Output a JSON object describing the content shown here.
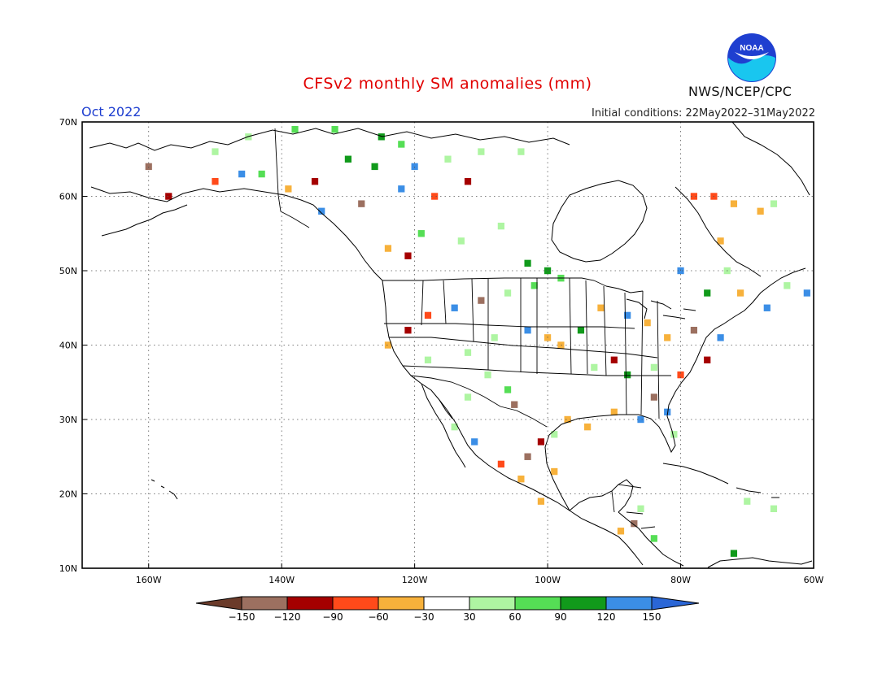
{
  "title": "CFSv2 monthly SM anomalies (mm)",
  "month_label": "Oct 2022",
  "initial_conditions": "Initial conditions: 22May2022–31May2022",
  "agency": "NWS/NCEP/CPC",
  "logo_text": "NOAA",
  "map": {
    "lon_min": -170,
    "lon_max": -60,
    "lat_min": 10,
    "lat_max": 70,
    "lat_ticks": [
      {
        "value": 70,
        "label": "70N"
      },
      {
        "value": 60,
        "label": "60N"
      },
      {
        "value": 50,
        "label": "50N"
      },
      {
        "value": 40,
        "label": "40N"
      },
      {
        "value": 30,
        "label": "30N"
      },
      {
        "value": 20,
        "label": "20N"
      },
      {
        "value": 10,
        "label": "10N"
      }
    ],
    "lon_ticks": [
      {
        "value": -160,
        "label": "160W"
      },
      {
        "value": -140,
        "label": "140W"
      },
      {
        "value": -120,
        "label": "120W"
      },
      {
        "value": -100,
        "label": "100W"
      },
      {
        "value": -80,
        "label": "80W"
      },
      {
        "value": -60,
        "label": "60W"
      }
    ],
    "gridlines": "dotted"
  },
  "colorbar": {
    "colors": [
      "#6b3b2a",
      "#9c7060",
      "#a50000",
      "#ff4a1a",
      "#f7b13b",
      "#ffffff",
      "#aef5a2",
      "#55de55",
      "#119a1b",
      "#3b8ee6",
      "#2a66d6"
    ],
    "labels": [
      "−150",
      "−120",
      "−90",
      "−60",
      "−30",
      "30",
      "60",
      "90",
      "120",
      "150"
    ]
  },
  "chart_data": {
    "type": "heatmap",
    "title": "CFSv2 monthly SM anomalies (mm)",
    "units": "mm",
    "period": "Oct 2022",
    "x_range": [
      -170,
      -60
    ],
    "y_range": [
      10,
      70
    ],
    "bins": [
      -150,
      -120,
      -90,
      -60,
      -30,
      30,
      60,
      90,
      120,
      150
    ],
    "cells": [
      {
        "lon": -150,
        "lat": 66,
        "v": 45
      },
      {
        "lon": -145,
        "lat": 68,
        "v": 45
      },
      {
        "lon": -138,
        "lat": 69,
        "v": 75
      },
      {
        "lon": -132,
        "lat": 69,
        "v": 75
      },
      {
        "lon": -125,
        "lat": 68,
        "v": 100
      },
      {
        "lon": -122,
        "lat": 67,
        "v": 75
      },
      {
        "lon": -130,
        "lat": 65,
        "v": 100
      },
      {
        "lon": -126,
        "lat": 64,
        "v": 100
      },
      {
        "lon": -120,
        "lat": 64,
        "v": 140
      },
      {
        "lon": -122,
        "lat": 61,
        "v": 140
      },
      {
        "lon": -115,
        "lat": 65,
        "v": 45
      },
      {
        "lon": -110,
        "lat": 66,
        "v": 45
      },
      {
        "lon": -104,
        "lat": 66,
        "v": 45
      },
      {
        "lon": -112,
        "lat": 62,
        "v": -110
      },
      {
        "lon": -117,
        "lat": 60,
        "v": -70
      },
      {
        "lon": -160,
        "lat": 64,
        "v": -140
      },
      {
        "lon": -157,
        "lat": 60,
        "v": -110
      },
      {
        "lon": -150,
        "lat": 62,
        "v": -70
      },
      {
        "lon": -146,
        "lat": 63,
        "v": 140
      },
      {
        "lon": -143,
        "lat": 63,
        "v": 75
      },
      {
        "lon": -139,
        "lat": 61,
        "v": -45
      },
      {
        "lon": -135,
        "lat": 62,
        "v": -100
      },
      {
        "lon": -134,
        "lat": 58,
        "v": 140
      },
      {
        "lon": -128,
        "lat": 59,
        "v": -130
      },
      {
        "lon": -124,
        "lat": 53,
        "v": -45
      },
      {
        "lon": -121,
        "lat": 52,
        "v": -110
      },
      {
        "lon": -119,
        "lat": 55,
        "v": 75
      },
      {
        "lon": -113,
        "lat": 54,
        "v": 45
      },
      {
        "lon": -107,
        "lat": 56,
        "v": 45
      },
      {
        "lon": -103,
        "lat": 51,
        "v": 100
      },
      {
        "lon": -100,
        "lat": 50,
        "v": 100
      },
      {
        "lon": -98,
        "lat": 49,
        "v": 75
      },
      {
        "lon": -102,
        "lat": 48,
        "v": 75
      },
      {
        "lon": -106,
        "lat": 47,
        "v": 45
      },
      {
        "lon": -110,
        "lat": 46,
        "v": -130
      },
      {
        "lon": -114,
        "lat": 45,
        "v": 140
      },
      {
        "lon": -118,
        "lat": 44,
        "v": -70
      },
      {
        "lon": -121,
        "lat": 42,
        "v": -110
      },
      {
        "lon": -124,
        "lat": 40,
        "v": -45
      },
      {
        "lon": -118,
        "lat": 38,
        "v": 45
      },
      {
        "lon": -112,
        "lat": 39,
        "v": 45
      },
      {
        "lon": -108,
        "lat": 41,
        "v": 45
      },
      {
        "lon": -103,
        "lat": 42,
        "v": 140
      },
      {
        "lon": -100,
        "lat": 41,
        "v": -45
      },
      {
        "lon": -98,
        "lat": 40,
        "v": -45
      },
      {
        "lon": -95,
        "lat": 42,
        "v": 100
      },
      {
        "lon": -92,
        "lat": 45,
        "v": -45
      },
      {
        "lon": -88,
        "lat": 44,
        "v": 140
      },
      {
        "lon": -85,
        "lat": 43,
        "v": -45
      },
      {
        "lon": -82,
        "lat": 41,
        "v": -45
      },
      {
        "lon": -78,
        "lat": 42,
        "v": -140
      },
      {
        "lon": -74,
        "lat": 41,
        "v": 140
      },
      {
        "lon": -76,
        "lat": 38,
        "v": -110
      },
      {
        "lon": -80,
        "lat": 36,
        "v": -70
      },
      {
        "lon": -84,
        "lat": 37,
        "v": 45
      },
      {
        "lon": -88,
        "lat": 36,
        "v": 100
      },
      {
        "lon": -90,
        "lat": 38,
        "v": -110
      },
      {
        "lon": -93,
        "lat": 37,
        "v": 45
      },
      {
        "lon": -84,
        "lat": 33,
        "v": -140
      },
      {
        "lon": -82,
        "lat": 31,
        "v": 140
      },
      {
        "lon": -86,
        "lat": 30,
        "v": 140
      },
      {
        "lon": -81,
        "lat": 28,
        "v": 45
      },
      {
        "lon": -90,
        "lat": 31,
        "v": -45
      },
      {
        "lon": -94,
        "lat": 29,
        "v": -45
      },
      {
        "lon": -97,
        "lat": 30,
        "v": -45
      },
      {
        "lon": -99,
        "lat": 28,
        "v": 45
      },
      {
        "lon": -101,
        "lat": 27,
        "v": -110
      },
      {
        "lon": -103,
        "lat": 25,
        "v": -140
      },
      {
        "lon": -105,
        "lat": 32,
        "v": -130
      },
      {
        "lon": -106,
        "lat": 34,
        "v": 75
      },
      {
        "lon": -109,
        "lat": 36,
        "v": 45
      },
      {
        "lon": -112,
        "lat": 33,
        "v": 45
      },
      {
        "lon": -114,
        "lat": 29,
        "v": 45
      },
      {
        "lon": -111,
        "lat": 27,
        "v": 140
      },
      {
        "lon": -107,
        "lat": 24,
        "v": -70
      },
      {
        "lon": -104,
        "lat": 22,
        "v": -45
      },
      {
        "lon": -101,
        "lat": 19,
        "v": -45
      },
      {
        "lon": -99,
        "lat": 23,
        "v": -45
      },
      {
        "lon": -87,
        "lat": 16,
        "v": -140
      },
      {
        "lon": -89,
        "lat": 15,
        "v": -45
      },
      {
        "lon": -86,
        "lat": 18,
        "v": 45
      },
      {
        "lon": -84,
        "lat": 14,
        "v": 75
      },
      {
        "lon": -70,
        "lat": 19,
        "v": 45
      },
      {
        "lon": -66,
        "lat": 18,
        "v": 45
      },
      {
        "lon": -72,
        "lat": 12,
        "v": 100
      },
      {
        "lon": -78,
        "lat": 60,
        "v": -90
      },
      {
        "lon": -75,
        "lat": 60,
        "v": -70
      },
      {
        "lon": -72,
        "lat": 59,
        "v": -45
      },
      {
        "lon": -68,
        "lat": 58,
        "v": -45
      },
      {
        "lon": -66,
        "lat": 59,
        "v": 45
      },
      {
        "lon": -74,
        "lat": 54,
        "v": -45
      },
      {
        "lon": -80,
        "lat": 50,
        "v": 140
      },
      {
        "lon": -73,
        "lat": 50,
        "v": 45
      },
      {
        "lon": -64,
        "lat": 48,
        "v": 45
      },
      {
        "lon": -61,
        "lat": 47,
        "v": 140
      },
      {
        "lon": -67,
        "lat": 45,
        "v": 140
      },
      {
        "lon": -71,
        "lat": 47,
        "v": -45
      },
      {
        "lon": -76,
        "lat": 47,
        "v": 100
      }
    ]
  }
}
